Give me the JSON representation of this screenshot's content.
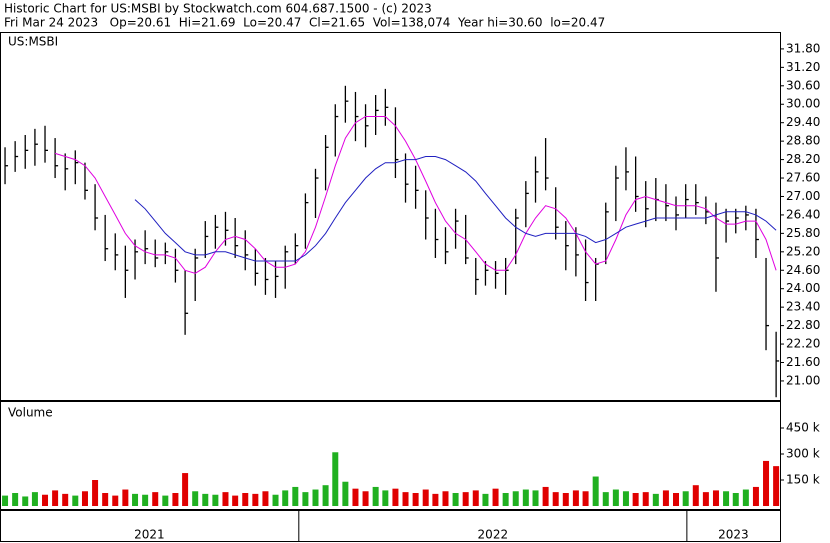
{
  "header": {
    "title": "Historic Chart for US:MSBI by Stockwatch.com 604.687.1500 - (c) 2023",
    "subtitle": "Fri Mar 24 2023   Op=20.61  Hi=21.69  Lo=20.47  Cl=21.65  Vol=138,074  Year hi=30.60  lo=20.47"
  },
  "chart_data": [
    {
      "type": "hilo",
      "label": "US:MSBI",
      "color": "#000000",
      "x": [
        2021.243,
        2021.269,
        2021.295,
        2021.32,
        2021.346,
        2021.372,
        2021.398,
        2021.424,
        2021.449,
        2021.475,
        2021.501,
        2021.527,
        2021.553,
        2021.578,
        2021.604,
        2021.63,
        2021.656,
        2021.682,
        2021.707,
        2021.733,
        2021.759,
        2021.785,
        2021.811,
        2021.836,
        2021.862,
        2021.888,
        2021.914,
        2021.94,
        2021.965,
        2021.991,
        2022.017,
        2022.043,
        2022.069,
        2022.094,
        2022.12,
        2022.146,
        2022.172,
        2022.198,
        2022.223,
        2022.249,
        2022.275,
        2022.301,
        2022.327,
        2022.352,
        2022.378,
        2022.404,
        2022.43,
        2022.456,
        2022.481,
        2022.507,
        2022.533,
        2022.559,
        2022.585,
        2022.61,
        2022.636,
        2022.662,
        2022.688,
        2022.714,
        2022.739,
        2022.765,
        2022.791,
        2022.817,
        2022.843,
        2022.868,
        2022.894,
        2022.92,
        2022.946,
        2022.972,
        2022.997,
        2023.023,
        2023.049,
        2023.075,
        2023.101,
        2023.126,
        2023.152,
        2023.178,
        2023.204,
        2023.23
      ],
      "high": [
        28.6,
        28.8,
        29.0,
        29.2,
        29.3,
        28.9,
        28.4,
        28.5,
        28.1,
        27.4,
        26.4,
        25.8,
        25.4,
        25.6,
        25.9,
        25.6,
        25.5,
        25.3,
        24.6,
        25.3,
        26.2,
        26.4,
        26.5,
        26.3,
        25.9,
        25.3,
        25.0,
        24.9,
        25.4,
        25.8,
        27.1,
        27.9,
        29.0,
        30.0,
        30.6,
        30.4,
        30.0,
        30.3,
        30.5,
        29.9,
        28.4,
        28.0,
        27.2,
        26.6,
        26.0,
        26.6,
        26.4,
        25.0,
        24.9,
        24.9,
        25.0,
        26.6,
        27.5,
        28.3,
        28.9,
        27.3,
        26.2,
        26.0,
        25.6,
        25.0,
        26.8,
        28.0,
        28.6,
        28.3,
        27.5,
        27.6,
        27.4,
        27.0,
        27.4,
        27.4,
        27.0,
        26.8,
        26.6,
        26.6,
        26.7,
        26.6,
        25.0,
        22.6
      ],
      "low": [
        27.4,
        27.8,
        27.9,
        28.0,
        28.1,
        27.6,
        27.2,
        27.4,
        26.9,
        25.9,
        24.9,
        24.6,
        23.7,
        24.3,
        24.8,
        24.7,
        24.8,
        24.2,
        22.5,
        23.6,
        25.0,
        25.3,
        25.4,
        25.0,
        24.6,
        24.1,
        23.8,
        23.7,
        24.0,
        24.8,
        25.3,
        26.3,
        27.2,
        28.3,
        29.4,
        28.8,
        28.6,
        29.0,
        29.3,
        27.6,
        26.8,
        26.6,
        25.6,
        25.0,
        24.8,
        25.3,
        24.8,
        23.8,
        24.1,
        24.0,
        23.8,
        24.8,
        26.0,
        26.8,
        27.2,
        25.6,
        24.6,
        24.4,
        23.6,
        23.6,
        24.8,
        26.2,
        27.2,
        26.5,
        26.0,
        26.2,
        26.2,
        25.9,
        26.3,
        26.4,
        26.1,
        23.9,
        25.5,
        25.8,
        25.9,
        25.0,
        22.0,
        20.47
      ],
      "close": [
        28.0,
        28.3,
        28.5,
        28.7,
        28.5,
        28.0,
        27.9,
        28.1,
        27.2,
        26.3,
        25.3,
        25.1,
        24.6,
        25.2,
        25.3,
        25.0,
        25.2,
        24.6,
        23.2,
        25.0,
        25.7,
        26.0,
        25.9,
        25.4,
        25.1,
        24.5,
        24.3,
        24.4,
        25.2,
        25.4,
        26.8,
        27.6,
        28.6,
        29.6,
        30.1,
        29.6,
        29.3,
        29.8,
        29.9,
        28.2,
        27.4,
        27.2,
        26.3,
        25.6,
        25.2,
        26.2,
        25.0,
        24.3,
        24.6,
        24.5,
        24.6,
        26.3,
        27.1,
        27.8,
        27.6,
        26.0,
        25.4,
        25.1,
        24.2,
        24.8,
        26.5,
        27.6,
        27.8,
        27.0,
        26.6,
        26.9,
        26.7,
        26.4,
        26.9,
        26.8,
        26.5,
        25.0,
        26.2,
        26.3,
        26.4,
        25.6,
        22.8,
        21.65
      ],
      "moving_averages": [
        {
          "color": "#e000e0",
          "values": [
            null,
            null,
            null,
            null,
            null,
            28.4,
            28.3,
            28.2,
            28.0,
            27.6,
            27.0,
            26.4,
            25.8,
            25.4,
            25.2,
            25.1,
            25.1,
            25.0,
            24.6,
            24.5,
            24.7,
            25.2,
            25.6,
            25.7,
            25.6,
            25.3,
            24.9,
            24.7,
            24.7,
            24.8,
            25.2,
            26.0,
            27.0,
            28.0,
            28.9,
            29.4,
            29.6,
            29.6,
            29.6,
            29.3,
            28.8,
            28.2,
            27.5,
            26.8,
            26.2,
            25.8,
            25.6,
            25.2,
            24.8,
            24.6,
            24.6,
            25.1,
            25.8,
            26.3,
            26.7,
            26.6,
            26.3,
            25.8,
            25.2,
            24.8,
            24.9,
            25.6,
            26.4,
            26.9,
            27.0,
            26.9,
            26.8,
            26.7,
            26.7,
            26.7,
            26.6,
            26.3,
            26.1,
            26.1,
            26.2,
            26.2,
            25.6,
            24.6
          ]
        },
        {
          "color": "#2020c0",
          "values": [
            null,
            null,
            null,
            null,
            null,
            null,
            null,
            null,
            null,
            null,
            null,
            null,
            null,
            26.9,
            26.6,
            26.2,
            25.8,
            25.5,
            25.2,
            25.1,
            25.1,
            25.2,
            25.2,
            25.1,
            25.0,
            24.9,
            24.9,
            24.9,
            24.9,
            24.9,
            25.1,
            25.4,
            25.8,
            26.3,
            26.8,
            27.2,
            27.6,
            27.9,
            28.1,
            28.1,
            28.2,
            28.2,
            28.3,
            28.3,
            28.2,
            28.0,
            27.8,
            27.5,
            27.1,
            26.7,
            26.3,
            26.0,
            25.8,
            25.7,
            25.8,
            25.8,
            25.8,
            25.8,
            25.7,
            25.5,
            25.6,
            25.8,
            26.0,
            26.1,
            26.2,
            26.3,
            26.3,
            26.3,
            26.3,
            26.3,
            26.3,
            26.4,
            26.5,
            26.5,
            26.5,
            26.4,
            26.2,
            25.9
          ]
        }
      ],
      "xlim": [
        2021.23,
        2023.24
      ],
      "xticks": [
        2022,
        2023
      ],
      "year_labels": [
        2021,
        2022,
        2023
      ],
      "ylim": [
        20.38,
        32.35
      ],
      "yticks": [
        {
          "value": 21.0,
          "label": "21.00"
        },
        {
          "value": 21.6,
          "label": "21.60"
        },
        {
          "value": 22.2,
          "label": "22.20"
        },
        {
          "value": 22.8,
          "label": "22.80"
        },
        {
          "value": 23.4,
          "label": "23.40"
        },
        {
          "value": 24.0,
          "label": "24.00"
        },
        {
          "value": 24.6,
          "label": "24.60"
        },
        {
          "value": 25.2,
          "label": "25.20"
        },
        {
          "value": 25.8,
          "label": "25.80"
        },
        {
          "value": 26.4,
          "label": "26.40"
        },
        {
          "value": 27.0,
          "label": "27.00"
        },
        {
          "value": 27.6,
          "label": "27.60"
        },
        {
          "value": 28.2,
          "label": "28.20"
        },
        {
          "value": 28.8,
          "label": "28.80"
        },
        {
          "value": 29.4,
          "label": "29.40"
        },
        {
          "value": 30.0,
          "label": "30.00"
        },
        {
          "value": 30.6,
          "label": "30.60"
        },
        {
          "value": 31.2,
          "label": "31.20"
        },
        {
          "value": 31.8,
          "label": "31.80"
        }
      ]
    },
    {
      "type": "bar",
      "label": "Volume",
      "up_color": "#20b020",
      "down_color": "#e00000",
      "values": [
        60000,
        75000,
        55000,
        80000,
        65000,
        90000,
        70000,
        60000,
        85000,
        150000,
        75000,
        60000,
        95000,
        70000,
        65000,
        80000,
        60000,
        75000,
        190000,
        85000,
        70000,
        65000,
        80000,
        60000,
        75000,
        70000,
        85000,
        65000,
        90000,
        110000,
        80000,
        95000,
        120000,
        310000,
        140000,
        100000,
        85000,
        110000,
        90000,
        100000,
        80000,
        75000,
        95000,
        70000,
        85000,
        75000,
        80000,
        90000,
        70000,
        100000,
        75000,
        85000,
        95000,
        90000,
        110000,
        80000,
        75000,
        90000,
        85000,
        170000,
        80000,
        95000,
        85000,
        75000,
        80000,
        70000,
        90000,
        75000,
        85000,
        120000,
        80000,
        90000,
        85000,
        75000,
        95000,
        110000,
        260000,
        230000
      ],
      "ylim": [
        0,
        600000
      ],
      "yticks": [
        {
          "value": 150000,
          "label": "150 k"
        },
        {
          "value": 300000,
          "label": "300 k"
        },
        {
          "value": 450000,
          "label": "450 k"
        }
      ]
    }
  ]
}
